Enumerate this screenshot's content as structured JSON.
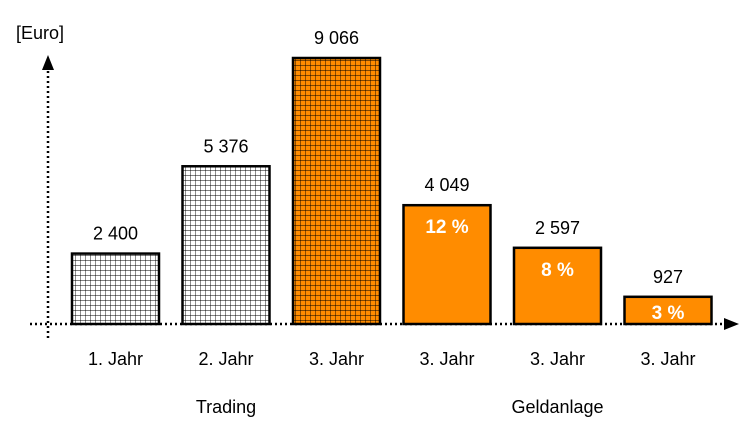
{
  "chart_data": {
    "type": "bar",
    "ylabel": "[Euro]",
    "ylim": [
      0,
      9066
    ],
    "grid": false,
    "categories": [
      "1. Jahr",
      "2. Jahr",
      "3. Jahr",
      "3. Jahr",
      "3. Jahr",
      "3. Jahr"
    ],
    "values": [
      2400,
      5376,
      9066,
      4049,
      2597,
      927
    ],
    "value_labels": [
      "2 400",
      "5 376",
      "9 066",
      "4 049",
      "2 597",
      "927"
    ],
    "bar_inner_labels": [
      "",
      "",
      "",
      "12 %",
      "8 %",
      "3 %"
    ],
    "bar_styles": [
      "grid-white",
      "grid-white",
      "grid-orange",
      "solid-orange",
      "solid-orange",
      "solid-orange"
    ],
    "groups": [
      {
        "label": "Trading",
        "bars": [
          0,
          1,
          2
        ]
      },
      {
        "label": "Geldanlage",
        "bars": [
          3,
          4,
          5
        ]
      }
    ],
    "colors": {
      "orange": "#ff8c00",
      "outline": "#000000",
      "white": "#ffffff"
    }
  }
}
